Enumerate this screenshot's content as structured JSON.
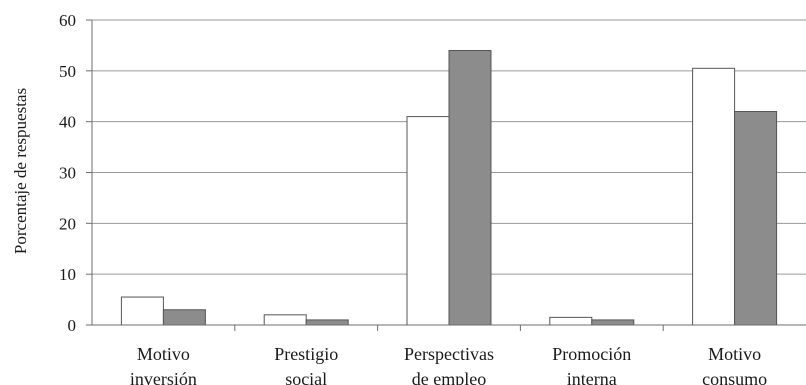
{
  "chart_data": {
    "type": "bar",
    "ylabel": "Porcentaje de respuestas",
    "xlabel": "",
    "ylim": [
      0,
      60
    ],
    "yticks": [
      0,
      10,
      20,
      30,
      40,
      50,
      60
    ],
    "grid": true,
    "legend": "none",
    "categories": [
      [
        "Motivo",
        "inversión"
      ],
      [
        "Prestigio",
        "social"
      ],
      [
        "Perspectivas",
        "de empleo"
      ],
      [
        "Promoción",
        "interna"
      ],
      [
        "Motivo",
        "consumo"
      ]
    ],
    "series": [
      {
        "values": [
          5.5,
          2.0,
          41.0,
          1.5,
          50.5
        ],
        "color": "#ffffff"
      },
      {
        "values": [
          3.0,
          1.0,
          54.0,
          1.0,
          42.0
        ],
        "color": "#8c8c8c"
      }
    ]
  }
}
